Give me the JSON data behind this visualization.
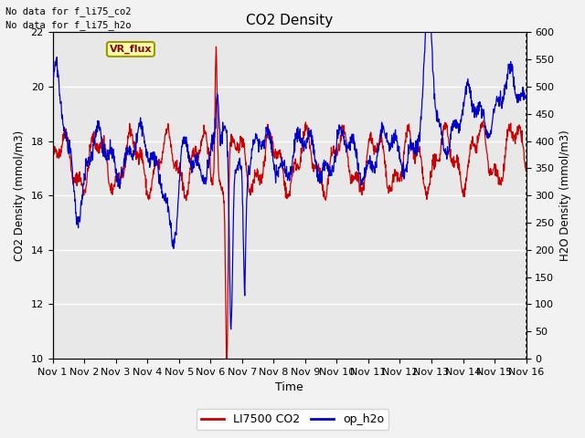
{
  "title": "CO2 Density",
  "xlabel": "Time",
  "ylabel_left": "CO2 Density (mmol/m3)",
  "ylabel_right": "H2O Density (mmol/m3)",
  "ylim_left": [
    10,
    22
  ],
  "ylim_right": [
    0,
    600
  ],
  "yticks_left": [
    10,
    12,
    14,
    16,
    18,
    20,
    22
  ],
  "yticks_right": [
    0,
    50,
    100,
    150,
    200,
    250,
    300,
    350,
    400,
    450,
    500,
    550,
    600
  ],
  "xtick_labels": [
    "Nov 1",
    "Nov 2",
    "Nov 3",
    "Nov 4",
    "Nov 5",
    "Nov 6",
    "Nov 7",
    "Nov 8",
    "Nov 9",
    "Nov 10",
    "Nov 11",
    "Nov 12",
    "Nov 13",
    "Nov 14",
    "Nov 15",
    "Nov 16"
  ],
  "text_topleft_1": "No data for f_li75_co2",
  "text_topleft_2": "No data for f_li75_h2o",
  "vr_flux_label": "VR_flux",
  "legend_entries": [
    "LI7500 CO2",
    "op_h2o"
  ],
  "legend_colors": [
    "#cc0000",
    "#0000cc"
  ],
  "co2_color": "#cc0000",
  "h2o_color": "#0000cc",
  "plot_bg_color": "#e8e8e8",
  "fig_bg_color": "#f2f2f2",
  "num_days": 15,
  "points_per_day": 96,
  "seed": 42
}
